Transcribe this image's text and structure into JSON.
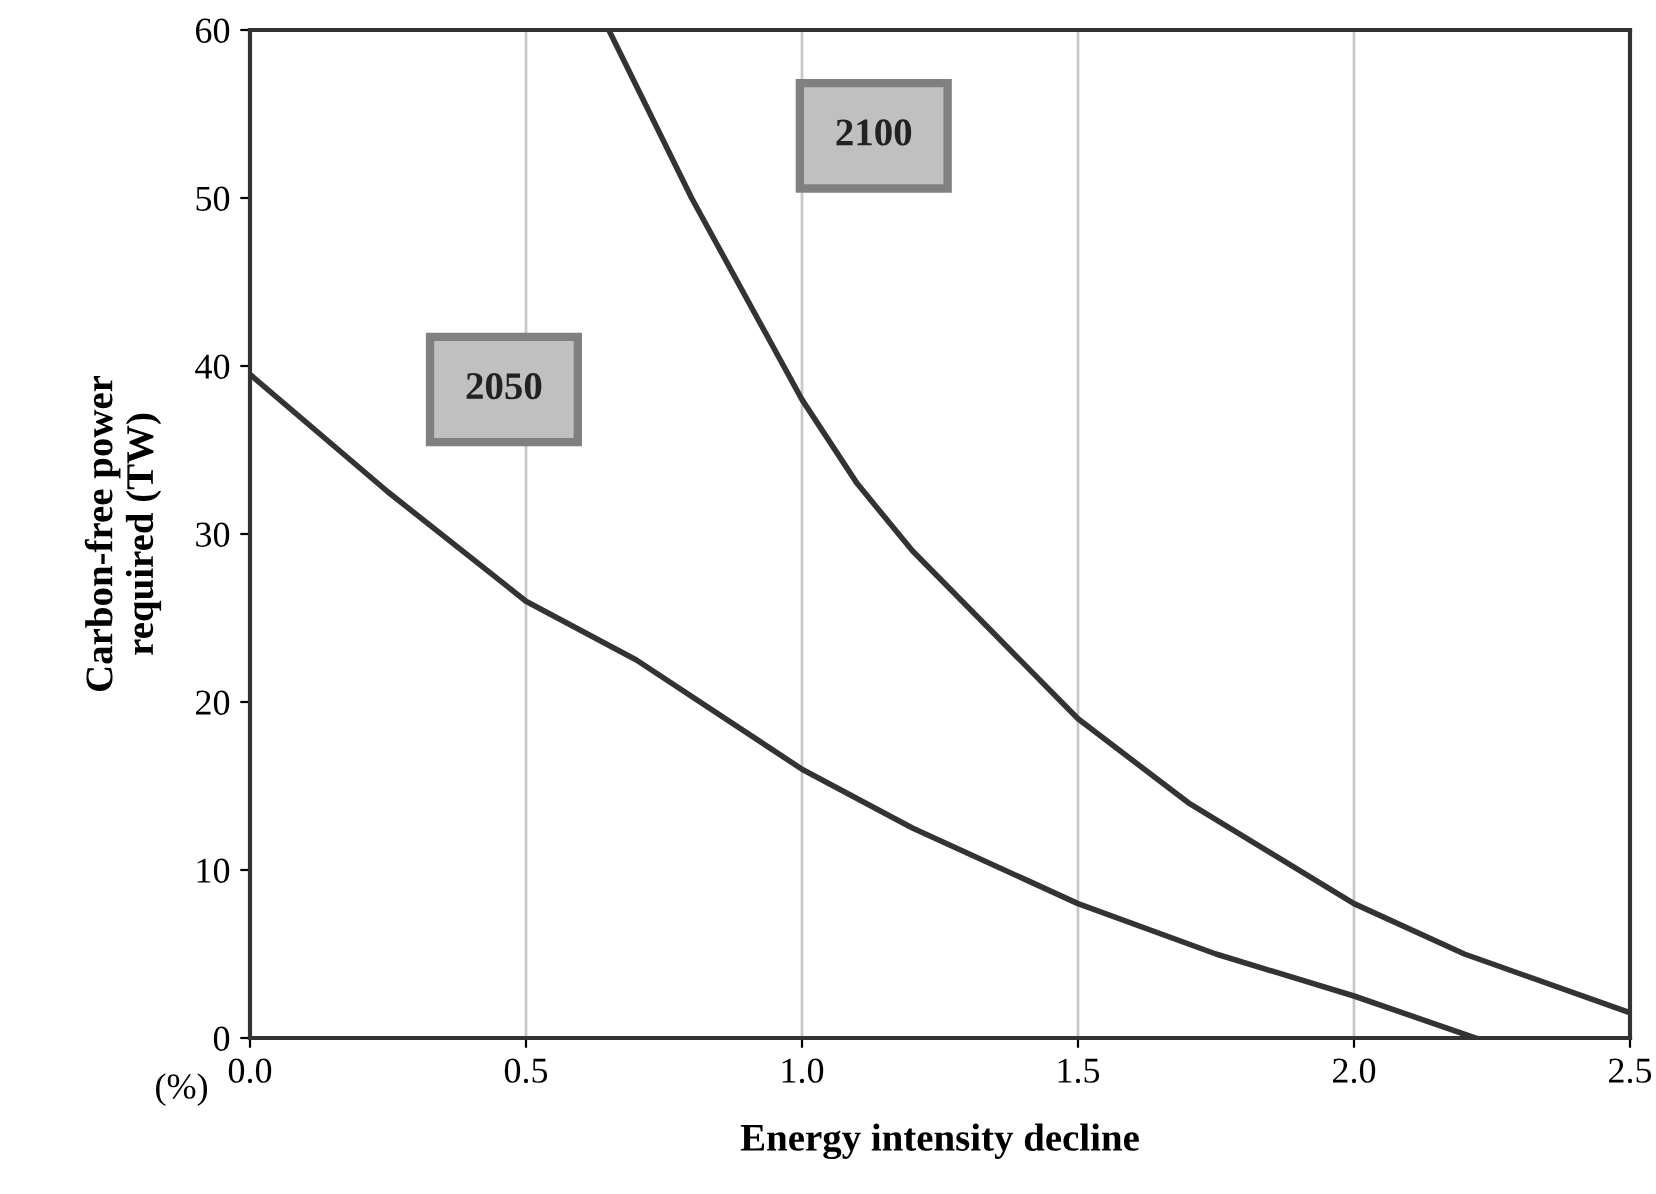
{
  "chart_data": {
    "type": "line",
    "xlabel": "Energy intensity decline",
    "ylabel": "Carbon-free power\nrequired (TW)",
    "annotations": [
      "(%)",
      "2050",
      "2100"
    ],
    "xlim": [
      0,
      2.5
    ],
    "xticks": [
      {
        "value": 0,
        "label": "0.0"
      },
      {
        "value": 0.5,
        "label": "0.5"
      },
      {
        "value": 1,
        "label": "1.0"
      },
      {
        "value": 1.5,
        "label": "1.5"
      },
      {
        "value": 2,
        "label": "2.0"
      },
      {
        "value": 2.5,
        "label": "2.5"
      }
    ],
    "ylim": [
      0,
      60
    ],
    "yticks": [
      0,
      10,
      20,
      30,
      40,
      50,
      60
    ],
    "grid": "x",
    "marker": "none",
    "line_style": "solid",
    "series": [
      {
        "color": "#333333",
        "x": [
          0,
          0.25,
          0.5,
          0.7,
          1.0,
          1.2,
          1.4,
          1.5,
          1.75,
          2.0,
          2.22
        ],
        "values": [
          39.5,
          32.5,
          26,
          22.5,
          16,
          12.5,
          9.5,
          8,
          5,
          2.5,
          0
        ]
      },
      {
        "color": "#333333",
        "x": [
          0.65,
          0.8,
          1.0,
          1.1,
          1.2,
          1.35,
          1.5,
          1.7,
          2.0,
          2.2,
          2.5
        ],
        "values": [
          60,
          50,
          38,
          33,
          29,
          24,
          19,
          14,
          8,
          5,
          1.5
        ]
      }
    ]
  }
}
